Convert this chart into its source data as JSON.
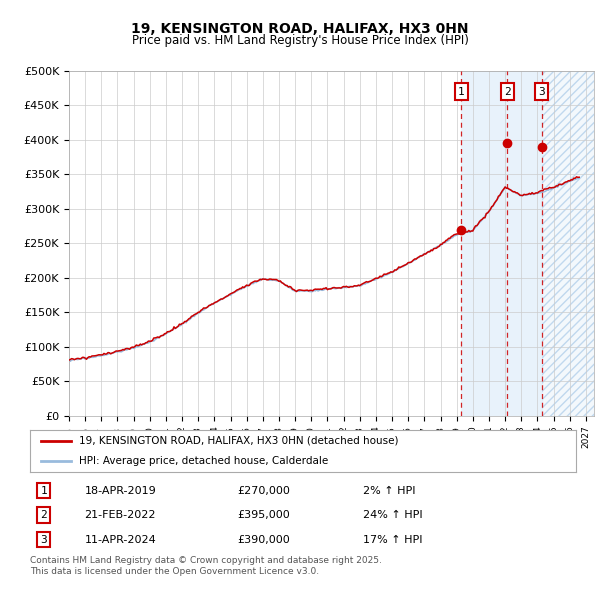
{
  "title": "19, KENSINGTON ROAD, HALIFAX, HX3 0HN",
  "subtitle": "Price paid vs. HM Land Registry's House Price Index (HPI)",
  "ylim": [
    0,
    500000
  ],
  "xlim_start": 1995.0,
  "xlim_end": 2027.5,
  "yticks": [
    0,
    50000,
    100000,
    150000,
    200000,
    250000,
    300000,
    350000,
    400000,
    450000,
    500000
  ],
  "ytick_labels": [
    "£0",
    "£50K",
    "£100K",
    "£150K",
    "£200K",
    "£250K",
    "£300K",
    "£350K",
    "£400K",
    "£450K",
    "£500K"
  ],
  "transactions": [
    {
      "date": 2019.29,
      "price": 270000,
      "label": "1",
      "text": "18-APR-2019",
      "price_str": "£270,000",
      "pct": "2% ↑ HPI"
    },
    {
      "date": 2022.13,
      "price": 395000,
      "label": "2",
      "text": "21-FEB-2022",
      "price_str": "£395,000",
      "pct": "24% ↑ HPI"
    },
    {
      "date": 2024.28,
      "price": 390000,
      "label": "3",
      "text": "11-APR-2024",
      "price_str": "£390,000",
      "pct": "17% ↑ HPI"
    }
  ],
  "legend_line1": "19, KENSINGTON ROAD, HALIFAX, HX3 0HN (detached house)",
  "legend_line2": "HPI: Average price, detached house, Calderdale",
  "footer": "Contains HM Land Registry data © Crown copyright and database right 2025.\nThis data is licensed under the Open Government Licence v3.0.",
  "red_color": "#cc0000",
  "blue_color": "#99bbdd",
  "shade_color": "#ddeeff",
  "bg_color": "#ffffff",
  "grid_color": "#cccccc",
  "hpi_knots_x": [
    1995,
    1996,
    1997,
    1998,
    1999,
    2000,
    2001,
    2002,
    2003,
    2004,
    2005,
    2006,
    2007,
    2008,
    2009,
    2010,
    2011,
    2012,
    2013,
    2014,
    2015,
    2016,
    2017,
    2018,
    2019,
    2020,
    2021,
    2022,
    2023,
    2024,
    2025,
    2026,
    2027
  ],
  "hpi_knots_y": [
    80000,
    83000,
    87000,
    92000,
    98000,
    107000,
    118000,
    132000,
    148000,
    163000,
    175000,
    188000,
    198000,
    195000,
    180000,
    180000,
    183000,
    185000,
    188000,
    197000,
    207000,
    220000,
    233000,
    246000,
    262000,
    268000,
    295000,
    330000,
    318000,
    322000,
    330000,
    340000,
    348000
  ]
}
